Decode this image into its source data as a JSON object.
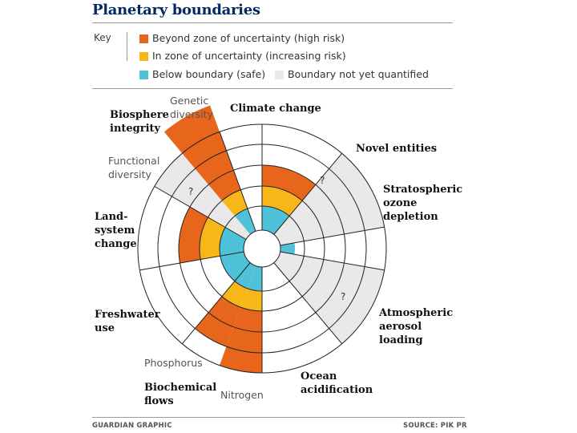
{
  "title": "Planetary boundaries",
  "key": {
    "label": "Key",
    "items": [
      {
        "text": "Beyond zone of uncertainty (high risk)",
        "color": "#e8661c"
      },
      {
        "text": "In zone of uncertainty (increasing risk)",
        "color": "#f7b719"
      },
      {
        "text": "Below boundary (safe)",
        "color": "#4fc1d9"
      },
      {
        "text": "Boundary not yet quantified",
        "color": "#e9e9e9"
      }
    ]
  },
  "diagram": {
    "ring_radii": [
      0,
      23,
      53,
      78,
      104,
      130,
      155
    ],
    "sectors": [
      {
        "name": "climate-change",
        "start": 0,
        "end": 40,
        "value": 4,
        "unknown": false
      },
      {
        "name": "novel-entities",
        "start": 40,
        "end": 80,
        "value": 6,
        "unknown": true
      },
      {
        "name": "stratospheric-ozone-depletion",
        "start": 80,
        "end": 100,
        "value": 1.6,
        "unknown": false
      },
      {
        "name": "atmospheric-aerosol-loading",
        "start": 100,
        "end": 140,
        "value": 6,
        "unknown": true
      },
      {
        "name": "ocean-acidification",
        "start": 140,
        "end": 180,
        "value": 0.5,
        "unknown": false
      },
      {
        "name": "biochemical-flows-nitrogen",
        "start": 180,
        "end": 200,
        "value": 6,
        "unknown": false
      },
      {
        "name": "biochemical-flows-phosphorus",
        "start": 200,
        "end": 220,
        "value": 5,
        "unknown": false
      },
      {
        "name": "freshwater-use",
        "start": 220,
        "end": 260,
        "value": 2,
        "unknown": false
      },
      {
        "name": "land-system-change",
        "start": 260,
        "end": 300,
        "value": 4,
        "unknown": false
      },
      {
        "name": "biosphere-integrity-functional",
        "start": 300,
        "end": 320,
        "value": 6,
        "unknown": true
      },
      {
        "name": "biosphere-integrity-genetic",
        "start": 320,
        "end": 340,
        "value": 7.4,
        "unknown": false
      }
    ]
  },
  "labels": {
    "climate_change": "Climate change",
    "novel_entities": "Novel entities",
    "ozone_1": "Stratospheric",
    "ozone_2": "ozone",
    "ozone_3": "depletion",
    "aerosol_1": "Atmospheric",
    "aerosol_2": "aerosol",
    "aerosol_3": "loading",
    "ocean_1": "Ocean",
    "ocean_2": "acidification",
    "nitrogen": "Nitrogen",
    "phosphorus": "Phosphorus",
    "biochem_1": "Biochemical",
    "biochem_2": "flows",
    "freshwater_1": "Freshwater",
    "freshwater_2": "use",
    "land_1": "Land-",
    "land_2": "system",
    "land_3": "change",
    "functional_1": "Functional",
    "functional_2": "diversity",
    "biosphere_1": "Biosphere",
    "biosphere_2": "integrity",
    "genetic_1": "Genetic",
    "genetic_2": "diversity",
    "unknown_mark": "?"
  },
  "footer": {
    "left": "GUARDIAN GRAPHIC",
    "right": "SOURCE: PIK PR"
  },
  "colors": {
    "high": "#e8661c",
    "uncertain": "#f7b719",
    "safe": "#4fc1d9",
    "unquantified": "#e9e9e9",
    "title": "#052962"
  }
}
